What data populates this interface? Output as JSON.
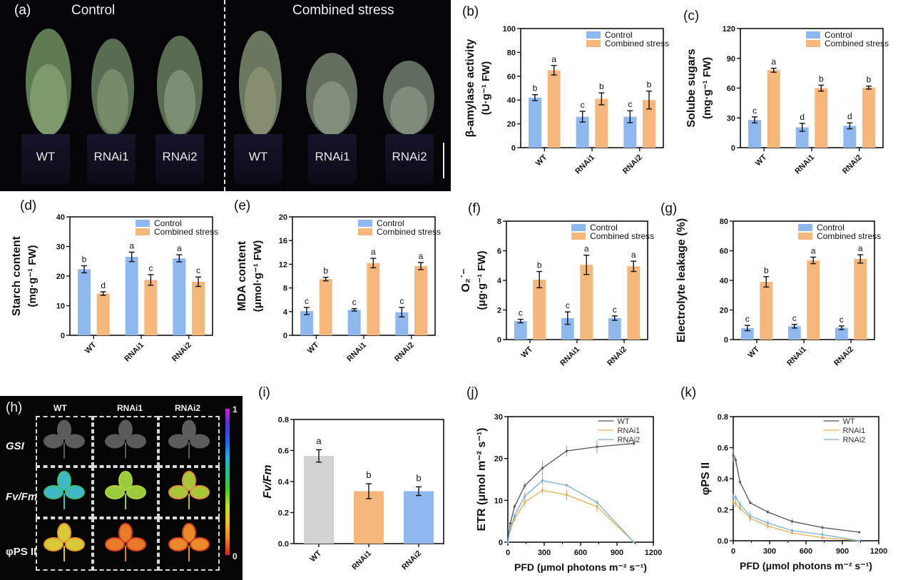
{
  "figure": {
    "panel_labels": [
      "(a)",
      "(b)",
      "(c)",
      "(d)",
      "(e)",
      "(f)",
      "(g)",
      "(h)",
      "(i)",
      "(j)",
      "(k)"
    ]
  },
  "photo_a": {
    "headers": [
      "Control",
      "Combined stress"
    ],
    "pots": [
      "WT",
      "RNAi1",
      "RNAi2",
      "WT",
      "RNAi1",
      "RNAi2"
    ]
  },
  "image_h": {
    "columns": [
      "WT",
      "RNAi1",
      "RNAi2"
    ],
    "rows": [
      "GSI",
      "Fv/Fm",
      "φPS II"
    ],
    "colorbar_max": "1",
    "colorbar_min": "0"
  },
  "colors": {
    "control": "#8fb8ef",
    "stress": "#f6b77c",
    "wt_gray": "#d2d2d2",
    "line_wt": "#555555",
    "line_rnai1": "#e8b04a",
    "line_rnai2": "#7ab0d6"
  },
  "chart_data": [
    {
      "id": "b",
      "type": "bar",
      "title": "",
      "ylabel": "β-amylase activity",
      "ylabel2": "(U·g⁻¹ FW)",
      "categories": [
        "WT",
        "RNAi1",
        "RNAi2"
      ],
      "ylim": [
        0,
        100
      ],
      "yticks": [
        0,
        20,
        40,
        60,
        80,
        100
      ],
      "legend": [
        "Control",
        "Combined stress"
      ],
      "legend_position": "top-right",
      "series": [
        {
          "name": "Control",
          "values": [
            42,
            26,
            26
          ],
          "errors": [
            2.5,
            4.5,
            5
          ],
          "letters": [
            "b",
            "c",
            "c"
          ]
        },
        {
          "name": "Combined stress",
          "values": [
            65,
            41,
            40
          ],
          "errors": [
            4,
            5,
            7.5
          ],
          "letters": [
            "a",
            "b",
            "b"
          ]
        }
      ]
    },
    {
      "id": "c",
      "type": "bar",
      "ylabel": "Solube sugars",
      "ylabel2": "(mg·g⁻¹ FW)",
      "categories": [
        "WT",
        "RNAi1",
        "RNAi2"
      ],
      "ylim": [
        0,
        120
      ],
      "yticks": [
        0,
        30,
        60,
        90,
        120
      ],
      "legend": [
        "Control",
        "Combined stress"
      ],
      "legend_position": "top-right",
      "series": [
        {
          "name": "Control",
          "values": [
            28,
            20.5,
            22
          ],
          "errors": [
            3,
            4,
            3
          ],
          "letters": [
            "c",
            "d",
            "d"
          ]
        },
        {
          "name": "Combined stress",
          "values": [
            78,
            60,
            60.5
          ],
          "errors": [
            2,
            3,
            1.5
          ],
          "letters": [
            "a",
            "b",
            "b"
          ]
        }
      ]
    },
    {
      "id": "d",
      "type": "bar",
      "ylabel": "Starch content",
      "ylabel2": "(mg·g⁻¹ FW)",
      "categories": [
        "WT",
        "RNAi1",
        "RNAi2"
      ],
      "ylim": [
        0,
        40
      ],
      "yticks": [
        0,
        10,
        20,
        30,
        40
      ],
      "legend": [
        "Control",
        "Combined stress"
      ],
      "legend_position": "top-right",
      "series": [
        {
          "name": "Control",
          "values": [
            22.3,
            26.5,
            26
          ],
          "errors": [
            1.2,
            1.6,
            1.2
          ],
          "letters": [
            "b",
            "a",
            "a"
          ]
        },
        {
          "name": "Combined stress",
          "values": [
            14.1,
            18.7,
            18.1
          ],
          "errors": [
            0.6,
            1.8,
            1.6
          ],
          "letters": [
            "d",
            "c",
            "c"
          ]
        }
      ]
    },
    {
      "id": "e",
      "type": "bar",
      "ylabel": "MDA content",
      "ylabel2": "(μmol·g⁻¹ FW)",
      "categories": [
        "WT",
        "RNAi1",
        "RNAi2"
      ],
      "ylim": [
        0,
        20
      ],
      "yticks": [
        0,
        4,
        8,
        12,
        16,
        20
      ],
      "legend": [
        "Control",
        "Combined stress"
      ],
      "legend_position": "top-right",
      "series": [
        {
          "name": "Control",
          "values": [
            4.1,
            4.3,
            3.9
          ],
          "errors": [
            0.6,
            0.2,
            0.8
          ],
          "letters": [
            "c",
            "c",
            "c"
          ]
        },
        {
          "name": "Combined stress",
          "values": [
            9.5,
            12.2,
            11.7
          ],
          "errors": [
            0.3,
            0.8,
            0.6
          ],
          "letters": [
            "b",
            "a",
            "a"
          ]
        }
      ]
    },
    {
      "id": "f",
      "type": "bar",
      "ylabel": "O₂˙⁻",
      "ylabel2": "(μg·g⁻¹ FW)",
      "categories": [
        "WT",
        "RNAi1",
        "RNAi2"
      ],
      "ylim": [
        0,
        8
      ],
      "yticks": [
        0,
        2,
        4,
        6,
        8
      ],
      "legend": [
        "Control",
        "Combined stress"
      ],
      "legend_position": "top-right",
      "series": [
        {
          "name": "Control",
          "values": [
            1.25,
            1.45,
            1.45
          ],
          "errors": [
            0.12,
            0.42,
            0.15
          ],
          "letters": [
            "c",
            "c",
            "c"
          ]
        },
        {
          "name": "Combined stress",
          "values": [
            4.05,
            5.05,
            4.95
          ],
          "errors": [
            0.55,
            0.65,
            0.35
          ],
          "letters": [
            "b",
            "a",
            "a"
          ]
        }
      ]
    },
    {
      "id": "g",
      "type": "bar",
      "ylabel": "Electrolyte leakage (%)",
      "ylabel2": "",
      "categories": [
        "WT",
        "RNAi1",
        "RNAi2"
      ],
      "ylim": [
        0,
        80
      ],
      "yticks": [
        0,
        20,
        40,
        60,
        80
      ],
      "legend": [
        "Control",
        "Combined stress"
      ],
      "legend_position": "top-right",
      "series": [
        {
          "name": "Control",
          "values": [
            7.8,
            9,
            8
          ],
          "errors": [
            1.8,
            1.2,
            1.2
          ],
          "letters": [
            "c",
            "c",
            "c"
          ]
        },
        {
          "name": "Combined stress",
          "values": [
            39,
            53.5,
            54.5
          ],
          "errors": [
            3.5,
            2.2,
            2.8
          ],
          "letters": [
            "b",
            "a",
            "a"
          ]
        }
      ]
    },
    {
      "id": "i",
      "type": "bar",
      "ylabel": "Fv/Fm",
      "categories": [
        "WT",
        "RNAi1",
        "RNAi2"
      ],
      "ylim": [
        0,
        0.8
      ],
      "yticks": [
        "0.0",
        "0.2",
        "0.4",
        "0.6",
        "0.8"
      ],
      "values": [
        0.565,
        0.338,
        0.338
      ],
      "errors": [
        0.04,
        0.048,
        0.028
      ],
      "letters": [
        "a",
        "b",
        "b"
      ]
    },
    {
      "id": "j",
      "type": "line",
      "ylabel": "ETR (μmol m⁻² s⁻¹)",
      "xlabel": "PFD (μmol photons m⁻² s⁻¹)",
      "xlim": [
        0,
        1200
      ],
      "xticks": [
        0,
        300,
        600,
        900,
        1200
      ],
      "ylim": [
        0,
        30
      ],
      "yticks": [
        0,
        10,
        20,
        30
      ],
      "legend_position": "top-right",
      "x": [
        0,
        20,
        55,
        140,
        285,
        485,
        735,
        1040
      ],
      "series": [
        {
          "name": "WT",
          "values": [
            0,
            4.5,
            8.5,
            13.5,
            17.7,
            21.8,
            22.8,
            23.6
          ],
          "errors": [
            0.3,
            0.5,
            0.6,
            0.9,
            1.8,
            1.3,
            1.6,
            0.6
          ]
        },
        {
          "name": "RNAi1",
          "values": [
            0,
            3.0,
            5.5,
            9.6,
            12.4,
            11.3,
            8.5,
            0
          ],
          "errors": [
            0.3,
            0.4,
            0.5,
            1.2,
            0.8,
            1.2,
            1.3,
            0.2
          ]
        },
        {
          "name": "RNAi2",
          "values": [
            0,
            3.3,
            6.3,
            11.0,
            14.7,
            13.6,
            9.5,
            0
          ],
          "errors": [
            0.3,
            0.4,
            0.5,
            1.0,
            1.0,
            0.4,
            0.5,
            0.2
          ]
        }
      ]
    },
    {
      "id": "k",
      "type": "line",
      "ylabel": "φPS II",
      "xlabel": "PFD (μmol photons m⁻² s⁻¹)",
      "xlim": [
        0,
        1200
      ],
      "xticks": [
        0,
        300,
        600,
        900,
        1200
      ],
      "ylim": [
        0,
        0.8
      ],
      "yticks": [
        "0.0",
        "0.2",
        "0.4",
        "0.6",
        "0.8"
      ],
      "legend_position": "top-right",
      "x": [
        0,
        20,
        55,
        140,
        285,
        485,
        735,
        1040
      ],
      "series": [
        {
          "name": "WT",
          "values": [
            0.55,
            0.52,
            0.38,
            0.245,
            0.185,
            0.125,
            0.085,
            0.055
          ],
          "errors": [
            0.04,
            0.03,
            0.02,
            0.01,
            0.015,
            0.02,
            0.015,
            0.005
          ]
        },
        {
          "name": "RNAi1",
          "values": [
            0.25,
            0.24,
            0.21,
            0.145,
            0.095,
            0.05,
            0.02,
            0.0
          ],
          "errors": [
            0.02,
            0.02,
            0.02,
            0.02,
            0.015,
            0.01,
            0.01,
            0.003
          ]
        },
        {
          "name": "RNAi2",
          "values": [
            0.285,
            0.28,
            0.235,
            0.16,
            0.115,
            0.065,
            0.04,
            0.0
          ],
          "errors": [
            0.02,
            0.02,
            0.02,
            0.03,
            0.015,
            0.012,
            0.02,
            0.003
          ]
        }
      ]
    }
  ]
}
